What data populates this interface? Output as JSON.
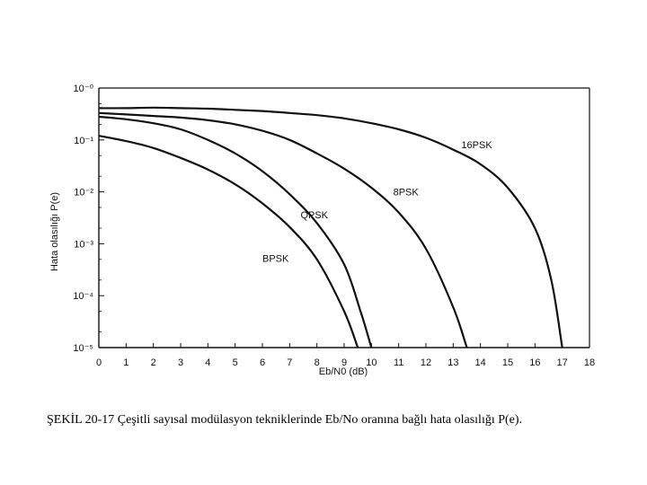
{
  "caption": "ŞEKİL 20-17 Çeşitli  sayısal modülasyon  tekniklerinde Eb/No oranına bağlı hata olasılığı P(e).",
  "chart_data": {
    "type": "line",
    "title": "",
    "xlabel": "Eb/N0 (dB)",
    "ylabel": "Hata olasılığı P(e)",
    "xlim": [
      0,
      18
    ],
    "ylim": [
      1e-05,
      1
    ],
    "yscale": "log",
    "grid": false,
    "x_ticks": [
      "0",
      "1",
      "2",
      "3",
      "4",
      "5",
      "6",
      "7",
      "8",
      "9",
      "10",
      "11",
      "12",
      "13",
      "14",
      "15",
      "16",
      "17",
      "18"
    ],
    "y_ticks": [
      {
        "value": 1,
        "label": "10⁻⁰"
      },
      {
        "value": 0.1,
        "label": "10⁻¹"
      },
      {
        "value": 0.01,
        "label": "10⁻²"
      },
      {
        "value": 0.001,
        "label": "10⁻³"
      },
      {
        "value": 0.0001,
        "label": "10⁻⁴"
      },
      {
        "value": 1e-05,
        "label": "10⁻⁵"
      }
    ],
    "series": [
      {
        "name": "BPSK",
        "points": [
          [
            0,
            0.12
          ],
          [
            1,
            0.095
          ],
          [
            2,
            0.07
          ],
          [
            3,
            0.045
          ],
          [
            4,
            0.027
          ],
          [
            5,
            0.014
          ],
          [
            6,
            0.006
          ],
          [
            7,
            0.0021
          ],
          [
            8,
            0.0005
          ],
          [
            9,
            5e-05
          ],
          [
            9.5,
            1e-05
          ]
        ]
      },
      {
        "name": "QPSK",
        "points": [
          [
            0,
            0.28
          ],
          [
            1,
            0.25
          ],
          [
            2,
            0.21
          ],
          [
            3,
            0.16
          ],
          [
            4,
            0.1
          ],
          [
            5,
            0.055
          ],
          [
            6,
            0.025
          ],
          [
            7,
            0.009
          ],
          [
            8,
            0.0025
          ],
          [
            9,
            0.0004
          ],
          [
            9.6,
            5e-05
          ],
          [
            10,
            1e-05
          ]
        ]
      },
      {
        "name": "8PSK",
        "points": [
          [
            0,
            0.33
          ],
          [
            1,
            0.31
          ],
          [
            2,
            0.29
          ],
          [
            3,
            0.27
          ],
          [
            4,
            0.24
          ],
          [
            5,
            0.2
          ],
          [
            6,
            0.15
          ],
          [
            7,
            0.1
          ],
          [
            8,
            0.055
          ],
          [
            9,
            0.028
          ],
          [
            10,
            0.012
          ],
          [
            11,
            0.004
          ],
          [
            12,
            0.0008
          ],
          [
            13,
            6e-05
          ],
          [
            13.5,
            1e-05
          ]
        ]
      },
      {
        "name": "16PSK",
        "points": [
          [
            0,
            0.41
          ],
          [
            1,
            0.41
          ],
          [
            2,
            0.42
          ],
          [
            3,
            0.41
          ],
          [
            4,
            0.4
          ],
          [
            5,
            0.38
          ],
          [
            6,
            0.36
          ],
          [
            7,
            0.33
          ],
          [
            8,
            0.3
          ],
          [
            9,
            0.26
          ],
          [
            10,
            0.21
          ],
          [
            11,
            0.16
          ],
          [
            12,
            0.11
          ],
          [
            13,
            0.065
          ],
          [
            14,
            0.034
          ],
          [
            15,
            0.012
          ],
          [
            16,
            0.002
          ],
          [
            16.6,
            0.0002
          ],
          [
            17,
            1e-05
          ]
        ]
      }
    ],
    "series_labels": [
      {
        "name": "16PSK",
        "text": "16PSK",
        "x": 13.3,
        "y": 0.07
      },
      {
        "name": "8PSK",
        "text": "8PSK",
        "x": 10.8,
        "y": 0.0085
      },
      {
        "name": "QPSK",
        "text": "QPSK",
        "x": 7.4,
        "y": 0.0031
      },
      {
        "name": "BPSK",
        "text": "BPSK",
        "x": 6.0,
        "y": 0.00045
      }
    ]
  }
}
